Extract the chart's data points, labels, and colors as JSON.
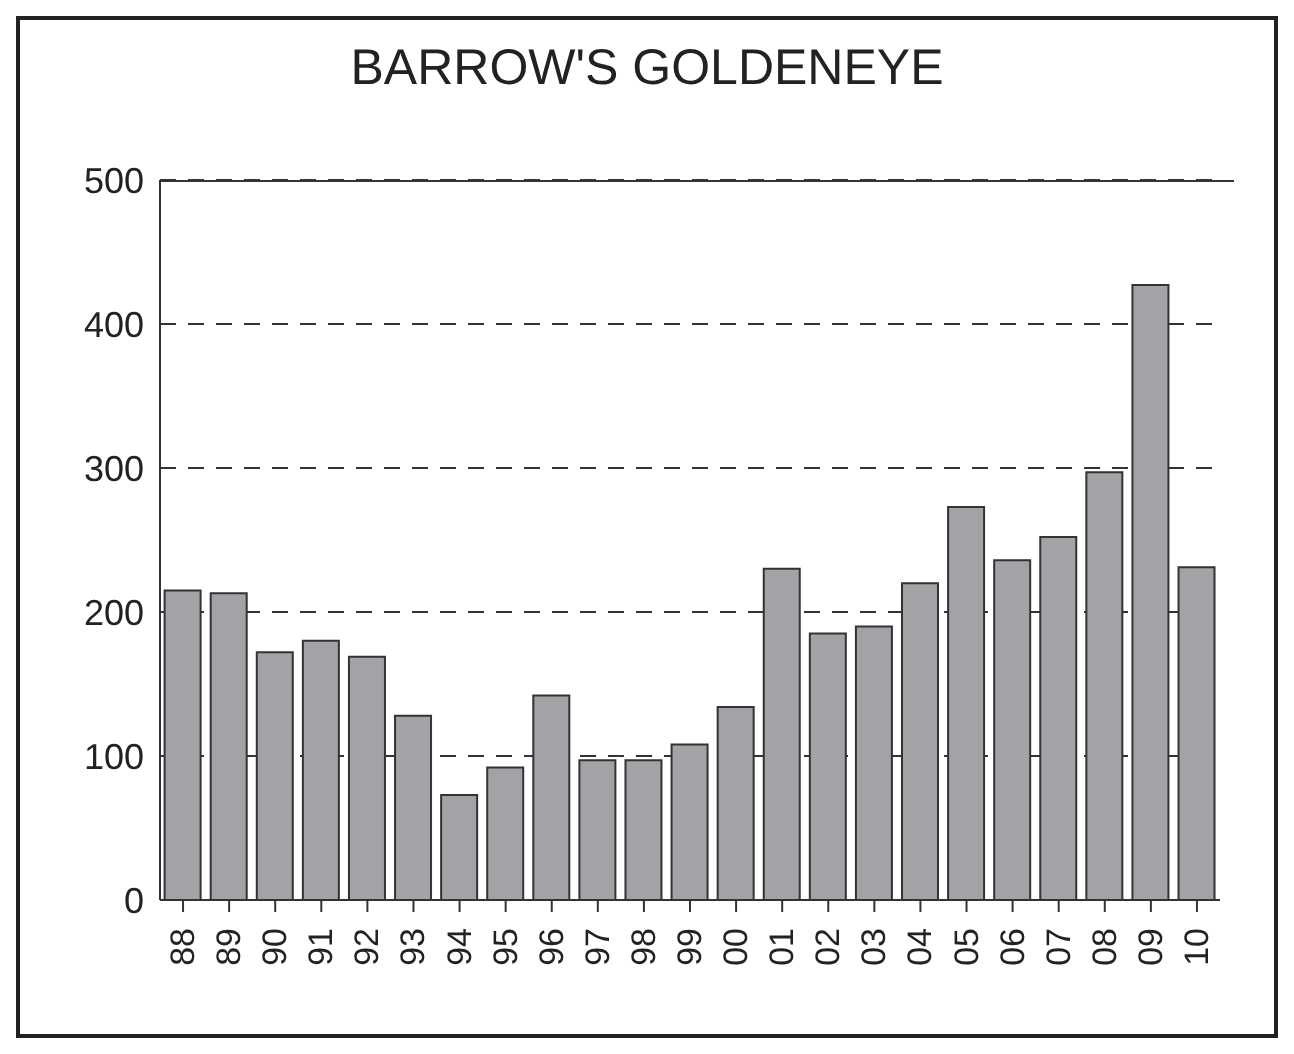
{
  "chart_data": {
    "type": "bar",
    "title": "BARROW'S GOLDENEYE",
    "categories": [
      "88",
      "89",
      "90",
      "91",
      "92",
      "93",
      "94",
      "95",
      "96",
      "97",
      "98",
      "99",
      "00",
      "01",
      "02",
      "03",
      "04",
      "05",
      "06",
      "07",
      "08",
      "09",
      "10"
    ],
    "values": [
      215,
      213,
      172,
      180,
      169,
      128,
      73,
      92,
      142,
      97,
      97,
      108,
      134,
      230,
      185,
      190,
      220,
      273,
      236,
      252,
      297,
      427,
      231
    ],
    "color": "#a2a3a7",
    "ylim": [
      0,
      500
    ],
    "yticks": [
      0,
      100,
      200,
      300,
      400,
      500
    ],
    "grid": "y",
    "line_style": "dashed"
  }
}
